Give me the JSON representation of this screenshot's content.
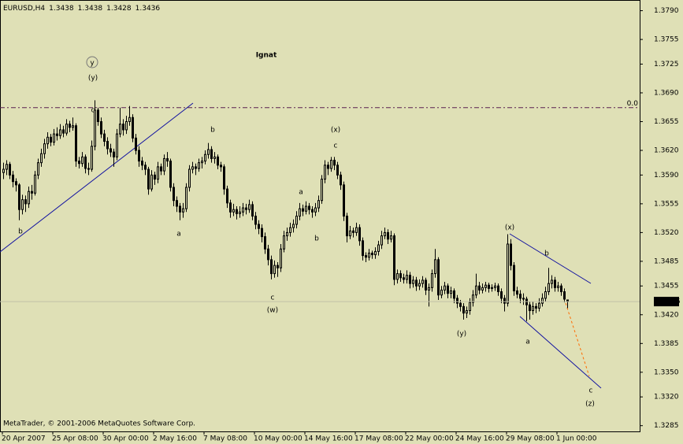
{
  "chart_data": {
    "type": "candlestick",
    "symbol": "EURUSD,H4",
    "copyright": "MetaTrader, © 2001-2006 MetaQuotes Software Corp.",
    "ylim": [
      1.3278,
      1.3803
    ],
    "yticks": [
      {
        "value": 1.379,
        "label": "1.3790"
      },
      1.3755,
      1.3725,
      {
        "value": 1.369,
        "label": "1.3690"
      },
      1.3655,
      {
        "value": 1.362,
        "label": "1.3620"
      },
      {
        "value": 1.359,
        "label": "1.3590"
      },
      1.3555,
      {
        "value": 1.352,
        "label": "1.3520"
      },
      1.3485,
      1.3455,
      {
        "value": 1.342,
        "label": "1.3420"
      },
      1.3385,
      {
        "value": 1.335,
        "label": "1.3350"
      },
      {
        "value": 1.332,
        "label": "1.3320"
      },
      1.3285
    ],
    "xticks": [
      {
        "value": 0,
        "label": "20 Apr 2007"
      },
      {
        "value": 16,
        "label": "25 Apr 08:00"
      },
      {
        "value": 32,
        "label": "30 Apr 00:00"
      },
      {
        "value": 48,
        "label": "2 May 16:00"
      },
      {
        "value": 64,
        "label": "7 May 08:00"
      },
      {
        "value": 80,
        "label": "10 May 00:00"
      },
      {
        "value": 96,
        "label": "14 May 16:00"
      },
      {
        "value": 112,
        "label": "17 May 08:00"
      },
      {
        "value": 128,
        "label": "22 May 00:00"
      },
      {
        "value": 144,
        "label": "24 May 16:00"
      },
      {
        "value": 160,
        "label": "29 May 08:00"
      },
      {
        "value": 176,
        "label": "1 Jun 00:00"
      }
    ],
    "level_line": {
      "value": 1.3672,
      "label": "0.0"
    },
    "annotations": [
      "y",
      "(y)",
      "c",
      "b",
      "b",
      "a",
      "(x)",
      "c",
      "a",
      "b",
      "c",
      "(w)",
      "(y)",
      "(x)",
      "b",
      "a",
      "c",
      "(z)",
      "Ignat"
    ],
    "ohlc": [
      [
        1.3593,
        1.3605,
        1.3585,
        1.3597
      ],
      [
        1.3597,
        1.3608,
        1.359,
        1.3603
      ],
      [
        1.3603,
        1.3606,
        1.3585,
        1.359
      ],
      [
        1.359,
        1.3595,
        1.3575,
        1.3582
      ],
      [
        1.3582,
        1.3586,
        1.357,
        1.3578
      ],
      [
        1.3578,
        1.358,
        1.3535,
        1.3548
      ],
      [
        1.3548,
        1.3566,
        1.3542,
        1.356
      ],
      [
        1.356,
        1.3565,
        1.3545,
        1.3555
      ],
      [
        1.3555,
        1.3576,
        1.355,
        1.357
      ],
      [
        1.357,
        1.3578,
        1.356,
        1.3568
      ],
      [
        1.3568,
        1.3595,
        1.3565,
        1.359
      ],
      [
        1.359,
        1.361,
        1.3585,
        1.3605
      ],
      [
        1.3605,
        1.3622,
        1.36,
        1.3616
      ],
      [
        1.3616,
        1.3634,
        1.361,
        1.3628
      ],
      [
        1.3628,
        1.3642,
        1.3622,
        1.3636
      ],
      [
        1.3636,
        1.364,
        1.3625,
        1.363
      ],
      [
        1.363,
        1.3646,
        1.3626,
        1.364
      ],
      [
        1.364,
        1.3648,
        1.3632,
        1.3638
      ],
      [
        1.3638,
        1.3652,
        1.3634,
        1.3645
      ],
      [
        1.3645,
        1.365,
        1.3636,
        1.3641
      ],
      [
        1.3641,
        1.3658,
        1.3638,
        1.3652
      ],
      [
        1.3652,
        1.3656,
        1.3642,
        1.3648
      ],
      [
        1.3648,
        1.366,
        1.3644,
        1.365
      ],
      [
        1.365,
        1.3653,
        1.36,
        1.3607
      ],
      [
        1.3607,
        1.3612,
        1.3598,
        1.3604
      ],
      [
        1.3604,
        1.3618,
        1.36,
        1.3612
      ],
      [
        1.3612,
        1.3615,
        1.3592,
        1.3598
      ],
      [
        1.3598,
        1.3605,
        1.359,
        1.3597
      ],
      [
        1.3597,
        1.3632,
        1.3594,
        1.3625
      ],
      [
        1.3625,
        1.3681,
        1.362,
        1.3669
      ],
      [
        1.3669,
        1.3672,
        1.365,
        1.3655
      ],
      [
        1.3655,
        1.366,
        1.3635,
        1.364
      ],
      [
        1.364,
        1.3645,
        1.3625,
        1.3631
      ],
      [
        1.3631,
        1.3636,
        1.3615,
        1.3622
      ],
      [
        1.3622,
        1.3628,
        1.3612,
        1.3618
      ],
      [
        1.3618,
        1.3622,
        1.36,
        1.3612
      ],
      [
        1.3612,
        1.3646,
        1.3608,
        1.364
      ],
      [
        1.364,
        1.3672,
        1.3636,
        1.3652
      ],
      [
        1.3652,
        1.3658,
        1.3638,
        1.3645
      ],
      [
        1.3645,
        1.3662,
        1.364,
        1.3655
      ],
      [
        1.3655,
        1.3674,
        1.365,
        1.366
      ],
      [
        1.366,
        1.3664,
        1.363,
        1.3635
      ],
      [
        1.3635,
        1.364,
        1.3615,
        1.362
      ],
      [
        1.362,
        1.3625,
        1.36,
        1.3607
      ],
      [
        1.3607,
        1.3612,
        1.3596,
        1.3602
      ],
      [
        1.3602,
        1.3606,
        1.359,
        1.3597
      ],
      [
        1.3597,
        1.36,
        1.3566,
        1.3573
      ],
      [
        1.3573,
        1.3596,
        1.357,
        1.359
      ],
      [
        1.359,
        1.3594,
        1.3578,
        1.3585
      ],
      [
        1.3585,
        1.3606,
        1.358,
        1.36
      ],
      [
        1.36,
        1.3604,
        1.359,
        1.3595
      ],
      [
        1.3595,
        1.3615,
        1.359,
        1.361
      ],
      [
        1.361,
        1.3618,
        1.36,
        1.3607
      ],
      [
        1.3607,
        1.361,
        1.357,
        1.3575
      ],
      [
        1.3575,
        1.358,
        1.3552,
        1.3559
      ],
      [
        1.3559,
        1.3564,
        1.3545,
        1.3552
      ],
      [
        1.3552,
        1.3556,
        1.3535,
        1.3545
      ],
      [
        1.3545,
        1.3556,
        1.3538,
        1.3549
      ],
      [
        1.3549,
        1.358,
        1.3545,
        1.3575
      ],
      [
        1.3575,
        1.3602,
        1.357,
        1.3597
      ],
      [
        1.3597,
        1.3606,
        1.3592,
        1.36
      ],
      [
        1.36,
        1.3604,
        1.359,
        1.3598
      ],
      [
        1.3598,
        1.361,
        1.3594,
        1.3605
      ],
      [
        1.3605,
        1.3612,
        1.3598,
        1.3607
      ],
      [
        1.3607,
        1.362,
        1.3603,
        1.3615
      ],
      [
        1.3615,
        1.3629,
        1.361,
        1.3621
      ],
      [
        1.3621,
        1.3625,
        1.3605,
        1.361
      ],
      [
        1.361,
        1.3618,
        1.3604,
        1.3612
      ],
      [
        1.3612,
        1.3615,
        1.3597,
        1.3602
      ],
      [
        1.3602,
        1.3606,
        1.3594,
        1.36
      ],
      [
        1.36,
        1.3603,
        1.3566,
        1.3573
      ],
      [
        1.3573,
        1.3577,
        1.355,
        1.3556
      ],
      [
        1.3556,
        1.356,
        1.3538,
        1.3545
      ],
      [
        1.3545,
        1.3555,
        1.354,
        1.3548
      ],
      [
        1.3548,
        1.3552,
        1.3536,
        1.3543
      ],
      [
        1.3543,
        1.3552,
        1.3538,
        1.3545
      ],
      [
        1.3545,
        1.3556,
        1.354,
        1.355
      ],
      [
        1.355,
        1.3555,
        1.3542,
        1.3548
      ],
      [
        1.3548,
        1.356,
        1.3544,
        1.3554
      ],
      [
        1.3554,
        1.3558,
        1.3535,
        1.354
      ],
      [
        1.354,
        1.3545,
        1.3524,
        1.353
      ],
      [
        1.353,
        1.3535,
        1.3518,
        1.3525
      ],
      [
        1.3525,
        1.353,
        1.3508,
        1.3515
      ],
      [
        1.3515,
        1.352,
        1.3494,
        1.35
      ],
      [
        1.35,
        1.3505,
        1.348,
        1.3487
      ],
      [
        1.3487,
        1.3492,
        1.3463,
        1.347
      ],
      [
        1.347,
        1.3486,
        1.3465,
        1.348
      ],
      [
        1.348,
        1.3484,
        1.3466,
        1.3477
      ],
      [
        1.3477,
        1.3506,
        1.3472,
        1.35
      ],
      [
        1.35,
        1.3522,
        1.3496,
        1.3516
      ],
      [
        1.3516,
        1.3526,
        1.351,
        1.352
      ],
      [
        1.352,
        1.3532,
        1.3515,
        1.3526
      ],
      [
        1.3526,
        1.3536,
        1.352,
        1.353
      ],
      [
        1.353,
        1.3546,
        1.3525,
        1.354
      ],
      [
        1.354,
        1.3556,
        1.3535,
        1.3549
      ],
      [
        1.3549,
        1.3554,
        1.354,
        1.3546
      ],
      [
        1.3546,
        1.3558,
        1.3542,
        1.3552
      ],
      [
        1.3552,
        1.3556,
        1.3542,
        1.3548
      ],
      [
        1.3548,
        1.3552,
        1.3538,
        1.3545
      ],
      [
        1.3545,
        1.3556,
        1.354,
        1.355
      ],
      [
        1.355,
        1.3565,
        1.3545,
        1.3559
      ],
      [
        1.3559,
        1.359,
        1.3555,
        1.3585
      ],
      [
        1.3585,
        1.3608,
        1.358,
        1.3602
      ],
      [
        1.3602,
        1.3606,
        1.359,
        1.3598
      ],
      [
        1.3598,
        1.3612,
        1.3594,
        1.3608
      ],
      [
        1.3608,
        1.3612,
        1.3596,
        1.3602
      ],
      [
        1.3602,
        1.3606,
        1.3585,
        1.359
      ],
      [
        1.359,
        1.3594,
        1.3572,
        1.3578
      ],
      [
        1.3578,
        1.3582,
        1.3534,
        1.354
      ],
      [
        1.354,
        1.3544,
        1.3508,
        1.3516
      ],
      [
        1.3516,
        1.3528,
        1.3512,
        1.3522
      ],
      [
        1.3522,
        1.3526,
        1.3514,
        1.352
      ],
      [
        1.352,
        1.3532,
        1.3516,
        1.3526
      ],
      [
        1.3526,
        1.353,
        1.3504,
        1.351
      ],
      [
        1.351,
        1.3514,
        1.3486,
        1.3492
      ],
      [
        1.3492,
        1.3496,
        1.3484,
        1.349
      ],
      [
        1.349,
        1.35,
        1.3486,
        1.3495
      ],
      [
        1.3495,
        1.3498,
        1.3488,
        1.3493
      ],
      [
        1.3493,
        1.3502,
        1.3488,
        1.3497
      ],
      [
        1.3497,
        1.351,
        1.3492,
        1.3505
      ],
      [
        1.3505,
        1.3522,
        1.35,
        1.3516
      ],
      [
        1.3516,
        1.3526,
        1.3512,
        1.352
      ],
      [
        1.352,
        1.3524,
        1.3506,
        1.3512
      ],
      [
        1.3512,
        1.3522,
        1.3508,
        1.3516
      ],
      [
        1.3516,
        1.3519,
        1.3456,
        1.3463
      ],
      [
        1.3463,
        1.3475,
        1.3458,
        1.347
      ],
      [
        1.347,
        1.3474,
        1.346,
        1.3465
      ],
      [
        1.3465,
        1.347,
        1.3458,
        1.3463
      ],
      [
        1.3463,
        1.3474,
        1.3458,
        1.3468
      ],
      [
        1.3468,
        1.3472,
        1.3452,
        1.3458
      ],
      [
        1.3458,
        1.3467,
        1.3453,
        1.3462
      ],
      [
        1.3462,
        1.3466,
        1.3449,
        1.3455
      ],
      [
        1.3455,
        1.3463,
        1.345,
        1.3458
      ],
      [
        1.3458,
        1.3467,
        1.3453,
        1.3462
      ],
      [
        1.3462,
        1.3465,
        1.3444,
        1.345
      ],
      [
        1.345,
        1.3458,
        1.343,
        1.3453
      ],
      [
        1.3453,
        1.3475,
        1.3448,
        1.347
      ],
      [
        1.347,
        1.35,
        1.3465,
        1.3487
      ],
      [
        1.3487,
        1.349,
        1.3438,
        1.3444
      ],
      [
        1.3444,
        1.3455,
        1.344,
        1.345
      ],
      [
        1.345,
        1.346,
        1.3445,
        1.3455
      ],
      [
        1.3455,
        1.3458,
        1.344,
        1.3446
      ],
      [
        1.3446,
        1.3454,
        1.344,
        1.3449
      ],
      [
        1.3449,
        1.3452,
        1.3434,
        1.344
      ],
      [
        1.344,
        1.3444,
        1.3428,
        1.3434
      ],
      [
        1.3434,
        1.3438,
        1.3424,
        1.343
      ],
      [
        1.343,
        1.3434,
        1.3414,
        1.3422
      ],
      [
        1.3422,
        1.343,
        1.3416,
        1.3425
      ],
      [
        1.3425,
        1.344,
        1.342,
        1.3435
      ],
      [
        1.3435,
        1.345,
        1.343,
        1.3444
      ],
      [
        1.3444,
        1.347,
        1.344,
        1.3455
      ],
      [
        1.3455,
        1.346,
        1.3445,
        1.345
      ],
      [
        1.345,
        1.3458,
        1.3446,
        1.3453
      ],
      [
        1.3453,
        1.346,
        1.3448,
        1.3456
      ],
      [
        1.3456,
        1.3459,
        1.3447,
        1.3452
      ],
      [
        1.3452,
        1.3457,
        1.3448,
        1.3453
      ],
      [
        1.3453,
        1.3459,
        1.3449,
        1.3455
      ],
      [
        1.3455,
        1.3458,
        1.3443,
        1.3448
      ],
      [
        1.3448,
        1.3452,
        1.3434,
        1.344
      ],
      [
        1.344,
        1.3444,
        1.3424,
        1.3434
      ],
      [
        1.3434,
        1.3518,
        1.343,
        1.3506
      ],
      [
        1.3506,
        1.3512,
        1.3474,
        1.348
      ],
      [
        1.348,
        1.3484,
        1.3443,
        1.3449
      ],
      [
        1.3449,
        1.3454,
        1.344,
        1.3445
      ],
      [
        1.3445,
        1.345,
        1.3434,
        1.344
      ],
      [
        1.344,
        1.3446,
        1.3432,
        1.3439
      ],
      [
        1.3439,
        1.3442,
        1.3412,
        1.3432
      ],
      [
        1.3432,
        1.3436,
        1.3414,
        1.3425
      ],
      [
        1.3425,
        1.3436,
        1.342,
        1.343
      ],
      [
        1.343,
        1.3434,
        1.3422,
        1.3428
      ],
      [
        1.3428,
        1.344,
        1.3424,
        1.3434
      ],
      [
        1.3434,
        1.3446,
        1.343,
        1.344
      ],
      [
        1.344,
        1.3454,
        1.3436,
        1.3448
      ],
      [
        1.3448,
        1.3477,
        1.3444,
        1.3458
      ],
      [
        1.3458,
        1.3468,
        1.3452,
        1.3462
      ],
      [
        1.3462,
        1.3466,
        1.3448,
        1.3453
      ],
      [
        1.3453,
        1.346,
        1.3448,
        1.3455
      ],
      [
        1.3455,
        1.3458,
        1.3443,
        1.3448
      ],
      [
        1.3448,
        1.3452,
        1.3435,
        1.3439
      ],
      [
        1.3438,
        1.3438,
        1.3428,
        1.3436
      ]
    ]
  }
}
